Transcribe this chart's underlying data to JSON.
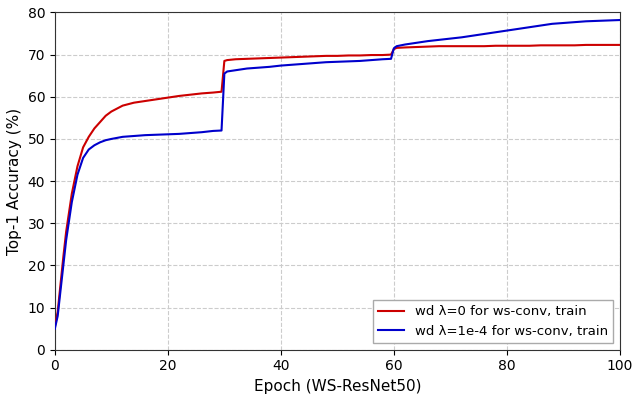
{
  "title": "",
  "xlabel": "Epoch (WS-ResNet50)",
  "ylabel": "Top-1 Accuracy (%)",
  "xlim": [
    0,
    100
  ],
  "ylim": [
    0,
    80
  ],
  "yticks": [
    0,
    10,
    20,
    30,
    40,
    50,
    60,
    70,
    80
  ],
  "xticks": [
    0,
    20,
    40,
    60,
    80,
    100
  ],
  "grid_color": "#cccccc",
  "grid_linestyle": "--",
  "background_color": "#ffffff",
  "legend_labels": [
    "wd λ=1e-4 for ws-conv, train",
    "wd λ=0 for ws-conv, train"
  ],
  "line_colors": [
    "#0000cc",
    "#cc0000"
  ],
  "line_width": 1.5,
  "blue_x": [
    0,
    0.5,
    1,
    1.5,
    2,
    3,
    4,
    5,
    6,
    7,
    8,
    9,
    10,
    12,
    14,
    16,
    18,
    20,
    22,
    24,
    26,
    28,
    29.5,
    30,
    30.5,
    32,
    34,
    36,
    38,
    40,
    42,
    44,
    46,
    48,
    50,
    52,
    54,
    56,
    58,
    59.5,
    60,
    60.5,
    62,
    64,
    66,
    68,
    70,
    72,
    74,
    76,
    78,
    80,
    82,
    84,
    86,
    88,
    90,
    92,
    94,
    96,
    98,
    100
  ],
  "blue_y": [
    5.0,
    8.0,
    14.0,
    20.0,
    26.0,
    35.0,
    41.5,
    45.5,
    47.5,
    48.5,
    49.2,
    49.7,
    50.0,
    50.5,
    50.7,
    50.9,
    51.0,
    51.1,
    51.2,
    51.4,
    51.6,
    51.9,
    52.0,
    65.5,
    66.0,
    66.3,
    66.7,
    66.9,
    67.1,
    67.4,
    67.6,
    67.8,
    68.0,
    68.2,
    68.3,
    68.4,
    68.5,
    68.7,
    68.9,
    69.0,
    71.5,
    72.0,
    72.4,
    72.8,
    73.2,
    73.5,
    73.8,
    74.1,
    74.5,
    74.9,
    75.3,
    75.7,
    76.1,
    76.5,
    76.9,
    77.3,
    77.5,
    77.7,
    77.9,
    78.0,
    78.1,
    78.2
  ],
  "red_x": [
    0,
    0.5,
    1,
    1.5,
    2,
    3,
    4,
    5,
    6,
    7,
    8,
    9,
    10,
    12,
    14,
    16,
    18,
    20,
    22,
    24,
    26,
    28,
    29.5,
    30,
    30.5,
    32,
    34,
    36,
    38,
    40,
    42,
    44,
    46,
    48,
    50,
    52,
    54,
    56,
    58,
    59.5,
    60,
    60.5,
    62,
    64,
    66,
    68,
    70,
    72,
    74,
    76,
    78,
    80,
    82,
    84,
    86,
    88,
    90,
    92,
    94,
    96,
    98,
    100
  ],
  "red_y": [
    5.5,
    9.0,
    15.5,
    22.0,
    28.0,
    37.0,
    43.5,
    48.0,
    50.5,
    52.5,
    54.0,
    55.5,
    56.5,
    57.9,
    58.6,
    59.0,
    59.4,
    59.8,
    60.2,
    60.5,
    60.8,
    61.0,
    61.2,
    68.5,
    68.7,
    68.9,
    69.0,
    69.1,
    69.2,
    69.3,
    69.4,
    69.5,
    69.6,
    69.7,
    69.7,
    69.8,
    69.8,
    69.9,
    69.9,
    70.0,
    71.3,
    71.6,
    71.7,
    71.8,
    71.9,
    72.0,
    72.0,
    72.0,
    72.0,
    72.0,
    72.1,
    72.1,
    72.1,
    72.1,
    72.2,
    72.2,
    72.2,
    72.2,
    72.3,
    72.3,
    72.3,
    72.3
  ]
}
